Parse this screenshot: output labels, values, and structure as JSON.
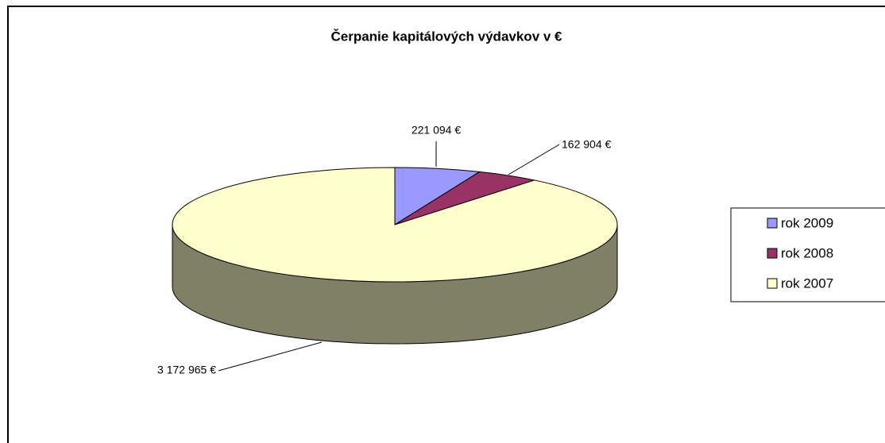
{
  "chart_data": {
    "type": "pie",
    "title": "Čerpanie kapitálových výdavkov v €",
    "categories": [
      "rok 2009",
      "rok 2008",
      "rok 2007"
    ],
    "values": [
      221094,
      162904,
      3172965
    ],
    "value_labels": [
      "221 094 €",
      "162 904 €",
      "3 172 965 €"
    ],
    "colors": [
      "#9999ff",
      "#993366",
      "#ffffcc"
    ],
    "legend": "right",
    "three_d": true
  }
}
